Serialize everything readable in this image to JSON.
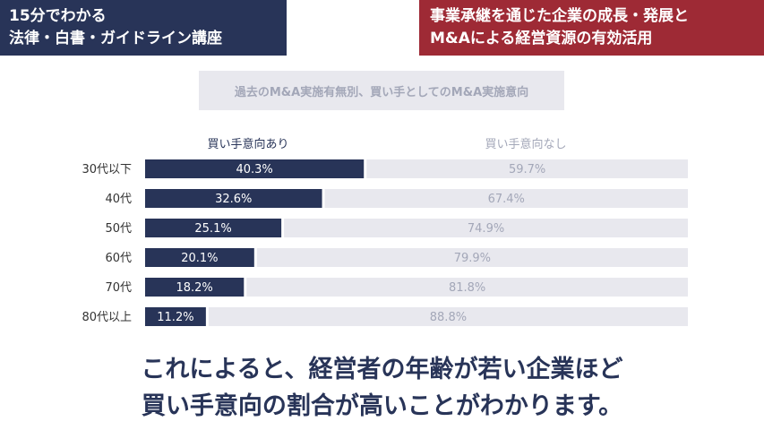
{
  "header": {
    "left_lines": [
      "15分でわかる",
      "法律・白書・ガイドライン講座"
    ],
    "right_lines": [
      "事業承継を通じた企業の成長・発展と",
      "M&Aによる経営資源の有効活用"
    ]
  },
  "chart_subtitle": "過去のM&A実施有無別、買い手としてのM&A実施意向",
  "chart_data": {
    "type": "bar",
    "stacked": true,
    "orientation": "horizontal",
    "categories": [
      "30代以下",
      "40代",
      "50代",
      "60代",
      "70代",
      "80代以上"
    ],
    "series": [
      {
        "name": "買い手意向あり",
        "values": [
          40.3,
          32.6,
          25.1,
          20.1,
          18.2,
          11.2
        ],
        "color": "#283458"
      },
      {
        "name": "買い手意向なし",
        "values": [
          59.7,
          67.4,
          74.9,
          79.9,
          81.8,
          88.8
        ],
        "color": "#e8e8ee"
      }
    ],
    "xlim": [
      0,
      100
    ],
    "value_labels": [
      [
        "40.3%",
        "32.6%",
        "25.1%",
        "20.1%",
        "18.2%",
        "11.2%"
      ],
      [
        "59.7%",
        "67.4%",
        "74.9%",
        "79.9%",
        "81.8%",
        "88.8%"
      ]
    ],
    "legend_position": "top"
  },
  "conclusion_lines": [
    "これによると、経営者の年齢が若い企業ほど",
    "買い手意向の割合が高いことがわかります。"
  ]
}
